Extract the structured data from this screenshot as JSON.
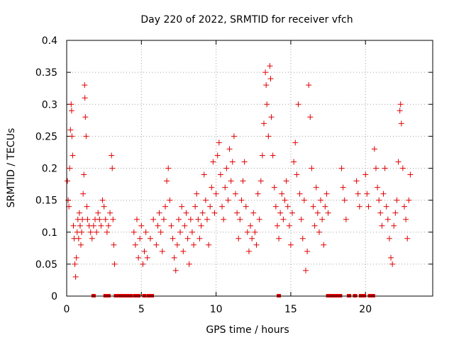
{
  "chart_data": {
    "type": "scatter",
    "title": "Day 220 of 2022, SRMTID for receiver vfch",
    "xlabel": "GPS time / hours",
    "ylabel": "SRMTID / TECUs",
    "xlim": [
      0,
      24.5
    ],
    "ylim": [
      0,
      0.4
    ],
    "x_ticks": [
      0,
      5,
      10,
      15,
      20
    ],
    "y_ticks": [
      0,
      0.05,
      0.1,
      0.15,
      0.2,
      0.25,
      0.3,
      0.35,
      0.4
    ],
    "y_tick_labels": [
      "0",
      "0.05",
      "0.1",
      "0.15",
      "0.2",
      "0.25",
      "0.3",
      "0.35",
      "0.4"
    ],
    "grid": true,
    "marker": "+",
    "color": "#e00000",
    "series": [
      {
        "name": "SRMTID",
        "points": [
          [
            0.05,
            0.18
          ],
          [
            0.1,
            0.15
          ],
          [
            0.15,
            0.14
          ],
          [
            0.2,
            0.2
          ],
          [
            0.25,
            0.26
          ],
          [
            0.3,
            0.3
          ],
          [
            0.33,
            0.29
          ],
          [
            0.35,
            0.25
          ],
          [
            0.4,
            0.22
          ],
          [
            0.45,
            0.11
          ],
          [
            0.5,
            0.09
          ],
          [
            0.55,
            0.05
          ],
          [
            0.6,
            0.03
          ],
          [
            0.65,
            0.06
          ],
          [
            0.7,
            0.1
          ],
          [
            0.75,
            0.12
          ],
          [
            0.8,
            0.09
          ],
          [
            0.85,
            0.13
          ],
          [
            0.9,
            0.11
          ],
          [
            0.95,
            0.08
          ],
          [
            1.0,
            0.1
          ],
          [
            1.05,
            0.12
          ],
          [
            1.1,
            0.16
          ],
          [
            1.15,
            0.19
          ],
          [
            1.2,
            0.33
          ],
          [
            1.22,
            0.31
          ],
          [
            1.25,
            0.28
          ],
          [
            1.3,
            0.25
          ],
          [
            1.35,
            0.14
          ],
          [
            1.4,
            0.12
          ],
          [
            1.5,
            0.11
          ],
          [
            1.6,
            0.1
          ],
          [
            1.7,
            0.09
          ],
          [
            1.8,
            0.11
          ],
          [
            1.9,
            0.12
          ],
          [
            2.0,
            0.1
          ],
          [
            2.1,
            0.13
          ],
          [
            2.2,
            0.12
          ],
          [
            2.3,
            0.11
          ],
          [
            2.4,
            0.15
          ],
          [
            2.5,
            0.14
          ],
          [
            2.6,
            0.12
          ],
          [
            2.7,
            0.1
          ],
          [
            2.8,
            0.11
          ],
          [
            2.9,
            0.13
          ],
          [
            3.0,
            0.22
          ],
          [
            3.05,
            0.2
          ],
          [
            3.1,
            0.12
          ],
          [
            3.15,
            0.08
          ],
          [
            3.2,
            0.05
          ],
          [
            4.5,
            0.1
          ],
          [
            4.6,
            0.08
          ],
          [
            4.7,
            0.12
          ],
          [
            4.8,
            0.06
          ],
          [
            4.9,
            0.09
          ],
          [
            5.0,
            0.11
          ],
          [
            5.1,
            0.05
          ],
          [
            5.2,
            0.07
          ],
          [
            5.3,
            0.1
          ],
          [
            5.4,
            0.06
          ],
          [
            5.6,
            0.09
          ],
          [
            5.8,
            0.12
          ],
          [
            6.0,
            0.08
          ],
          [
            6.1,
            0.11
          ],
          [
            6.2,
            0.13
          ],
          [
            6.3,
            0.1
          ],
          [
            6.4,
            0.07
          ],
          [
            6.5,
            0.12
          ],
          [
            6.6,
            0.14
          ],
          [
            6.7,
            0.18
          ],
          [
            6.8,
            0.2
          ],
          [
            6.9,
            0.15
          ],
          [
            7.0,
            0.11
          ],
          [
            7.1,
            0.09
          ],
          [
            7.2,
            0.06
          ],
          [
            7.3,
            0.04
          ],
          [
            7.4,
            0.08
          ],
          [
            7.5,
            0.12
          ],
          [
            7.6,
            0.1
          ],
          [
            7.7,
            0.14
          ],
          [
            7.8,
            0.07
          ],
          [
            7.9,
            0.11
          ],
          [
            8.0,
            0.13
          ],
          [
            8.1,
            0.09
          ],
          [
            8.2,
            0.05
          ],
          [
            8.3,
            0.12
          ],
          [
            8.4,
            0.1
          ],
          [
            8.5,
            0.08
          ],
          [
            8.6,
            0.14
          ],
          [
            8.7,
            0.16
          ],
          [
            8.8,
            0.12
          ],
          [
            8.9,
            0.09
          ],
          [
            9.0,
            0.11
          ],
          [
            9.1,
            0.13
          ],
          [
            9.2,
            0.19
          ],
          [
            9.3,
            0.15
          ],
          [
            9.4,
            0.12
          ],
          [
            9.5,
            0.08
          ],
          [
            9.6,
            0.14
          ],
          [
            9.7,
            0.17
          ],
          [
            9.8,
            0.21
          ],
          [
            9.9,
            0.13
          ],
          [
            10.0,
            0.16
          ],
          [
            10.1,
            0.22
          ],
          [
            10.2,
            0.24
          ],
          [
            10.3,
            0.19
          ],
          [
            10.4,
            0.14
          ],
          [
            10.5,
            0.12
          ],
          [
            10.6,
            0.17
          ],
          [
            10.7,
            0.2
          ],
          [
            10.8,
            0.15
          ],
          [
            10.9,
            0.23
          ],
          [
            11.0,
            0.18
          ],
          [
            11.1,
            0.21
          ],
          [
            11.2,
            0.25
          ],
          [
            11.3,
            0.16
          ],
          [
            11.4,
            0.13
          ],
          [
            11.5,
            0.09
          ],
          [
            11.6,
            0.12
          ],
          [
            11.7,
            0.15
          ],
          [
            11.8,
            0.18
          ],
          [
            11.9,
            0.21
          ],
          [
            12.0,
            0.14
          ],
          [
            12.1,
            0.1
          ],
          [
            12.2,
            0.07
          ],
          [
            12.3,
            0.11
          ],
          [
            12.4,
            0.09
          ],
          [
            12.5,
            0.13
          ],
          [
            12.6,
            0.1
          ],
          [
            12.7,
            0.08
          ],
          [
            12.8,
            0.16
          ],
          [
            12.9,
            0.12
          ],
          [
            13.0,
            0.18
          ],
          [
            13.1,
            0.22
          ],
          [
            13.2,
            0.27
          ],
          [
            13.3,
            0.35
          ],
          [
            13.35,
            0.33
          ],
          [
            13.4,
            0.3
          ],
          [
            13.5,
            0.25
          ],
          [
            13.6,
            0.36
          ],
          [
            13.65,
            0.34
          ],
          [
            13.7,
            0.28
          ],
          [
            13.8,
            0.22
          ],
          [
            13.9,
            0.17
          ],
          [
            14.0,
            0.14
          ],
          [
            14.1,
            0.11
          ],
          [
            14.2,
            0.09
          ],
          [
            14.3,
            0.13
          ],
          [
            14.4,
            0.16
          ],
          [
            14.5,
            0.12
          ],
          [
            14.6,
            0.15
          ],
          [
            14.7,
            0.18
          ],
          [
            14.8,
            0.14
          ],
          [
            14.9,
            0.11
          ],
          [
            15.0,
            0.08
          ],
          [
            15.1,
            0.13
          ],
          [
            15.2,
            0.21
          ],
          [
            15.3,
            0.24
          ],
          [
            15.4,
            0.19
          ],
          [
            15.5,
            0.3
          ],
          [
            15.6,
            0.16
          ],
          [
            15.7,
            0.12
          ],
          [
            15.8,
            0.09
          ],
          [
            15.9,
            0.15
          ],
          [
            16.0,
            0.04
          ],
          [
            16.1,
            0.07
          ],
          [
            16.2,
            0.33
          ],
          [
            16.3,
            0.28
          ],
          [
            16.4,
            0.2
          ],
          [
            16.5,
            0.14
          ],
          [
            16.6,
            0.11
          ],
          [
            16.7,
            0.17
          ],
          [
            16.8,
            0.13
          ],
          [
            16.9,
            0.1
          ],
          [
            17.0,
            0.15
          ],
          [
            17.1,
            0.12
          ],
          [
            17.2,
            0.08
          ],
          [
            17.3,
            0.14
          ],
          [
            17.4,
            0.16
          ],
          [
            17.5,
            0.13
          ],
          [
            18.4,
            0.2
          ],
          [
            18.5,
            0.17
          ],
          [
            18.6,
            0.15
          ],
          [
            18.7,
            0.12
          ],
          [
            19.4,
            0.18
          ],
          [
            19.5,
            0.16
          ],
          [
            19.6,
            0.14
          ],
          [
            20.0,
            0.19
          ],
          [
            20.1,
            0.16
          ],
          [
            20.2,
            0.14
          ],
          [
            20.6,
            0.23
          ],
          [
            20.7,
            0.2
          ],
          [
            20.8,
            0.17
          ],
          [
            20.9,
            0.15
          ],
          [
            21.0,
            0.13
          ],
          [
            21.1,
            0.11
          ],
          [
            21.2,
            0.16
          ],
          [
            21.3,
            0.2
          ],
          [
            21.4,
            0.14
          ],
          [
            21.5,
            0.12
          ],
          [
            21.6,
            0.09
          ],
          [
            21.7,
            0.06
          ],
          [
            21.8,
            0.05
          ],
          [
            21.9,
            0.11
          ],
          [
            22.0,
            0.13
          ],
          [
            22.1,
            0.15
          ],
          [
            22.2,
            0.21
          ],
          [
            22.3,
            0.29
          ],
          [
            22.35,
            0.3
          ],
          [
            22.4,
            0.27
          ],
          [
            22.5,
            0.2
          ],
          [
            22.6,
            0.14
          ],
          [
            22.7,
            0.12
          ],
          [
            22.8,
            0.09
          ],
          [
            22.9,
            0.15
          ],
          [
            23.0,
            0.19
          ]
        ]
      }
    ],
    "zero_markers_x": [
      1.8,
      2.6,
      2.8,
      3.3,
      3.5,
      3.7,
      3.9,
      4.1,
      4.3,
      4.6,
      4.8,
      5.2,
      5.5,
      5.7,
      14.2,
      17.5,
      17.7,
      17.9,
      18.1,
      18.3,
      18.9,
      19.3,
      19.7,
      19.9,
      20.3,
      20.5
    ]
  }
}
